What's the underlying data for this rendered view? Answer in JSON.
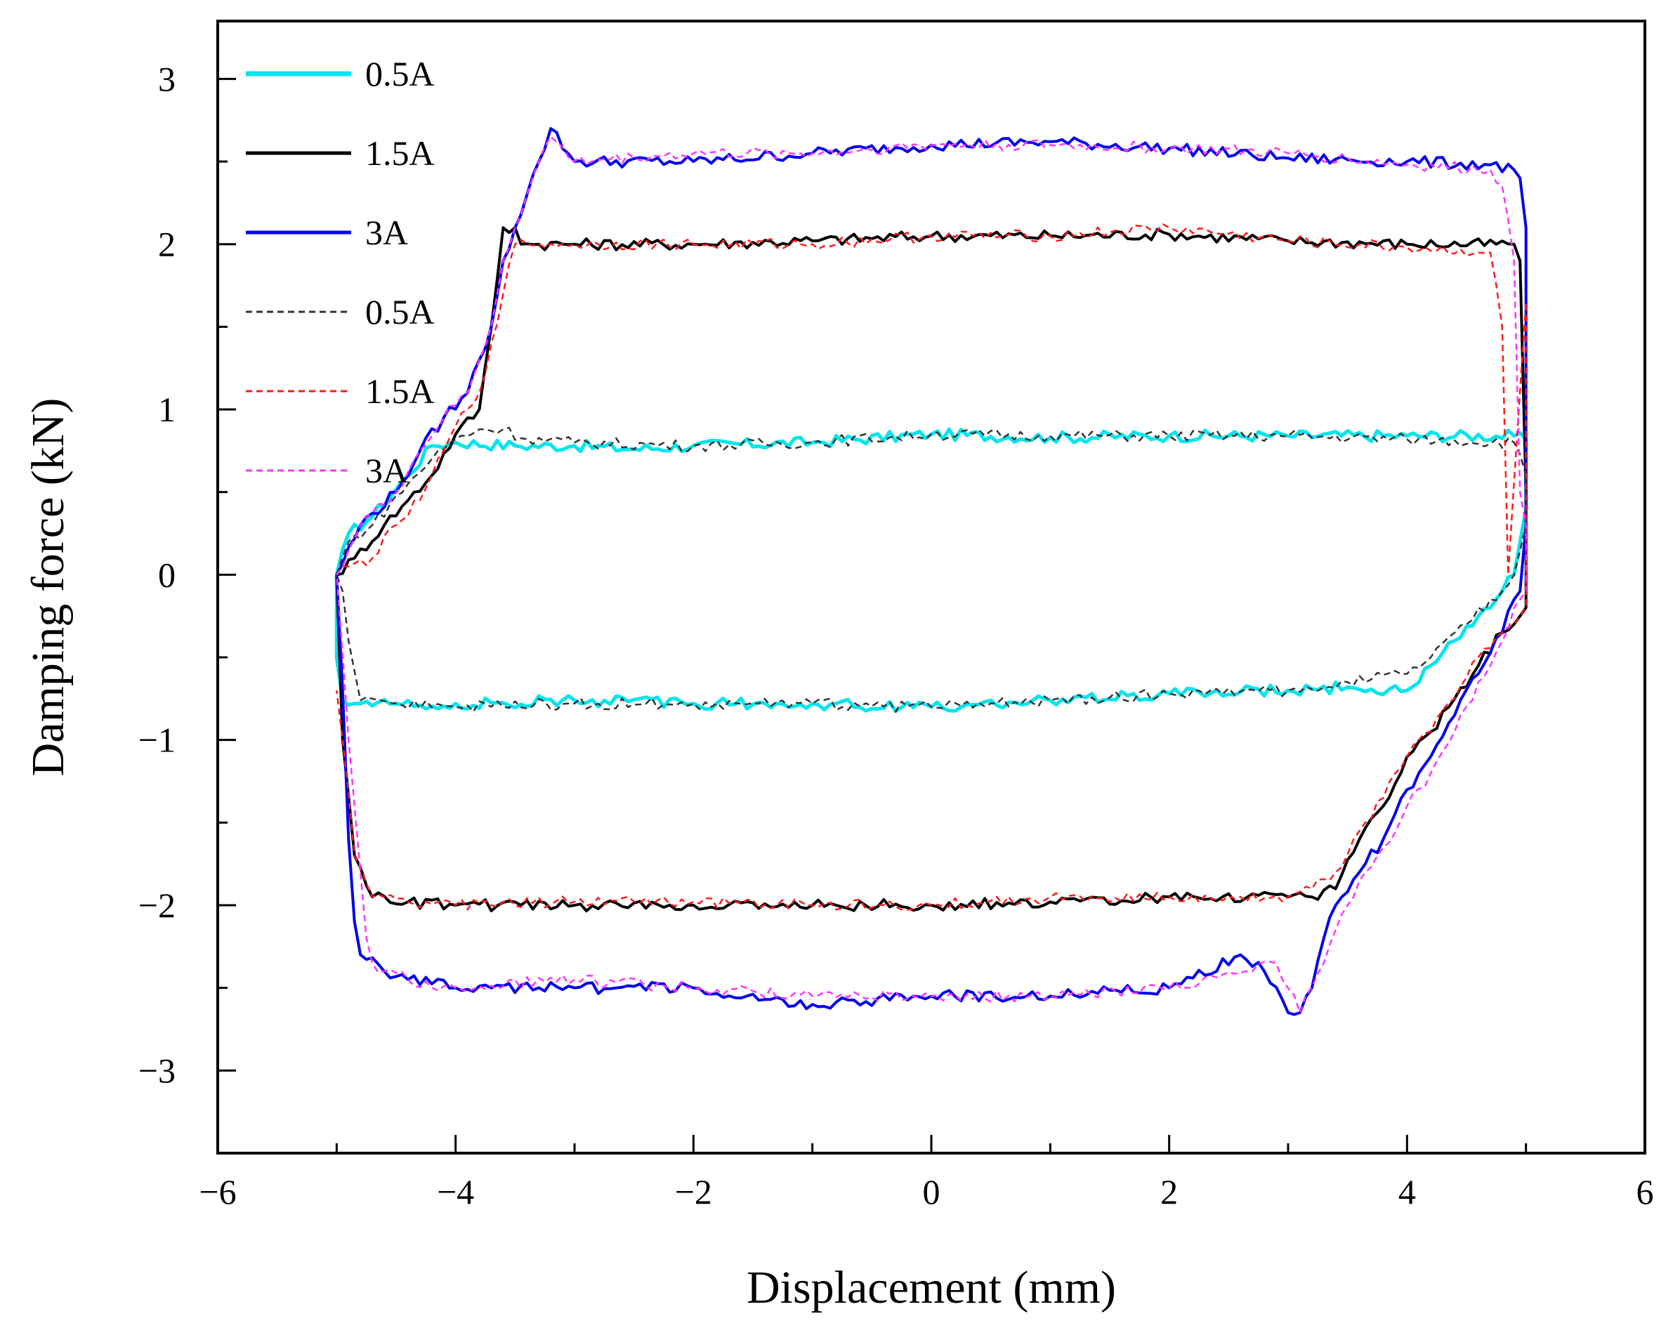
{
  "chart_data": {
    "type": "line",
    "title": "",
    "xlabel": "Displacement (mm)",
    "ylabel": "Damping force (kN)",
    "xlim": [
      -6,
      6
    ],
    "ylim": [
      -3.5,
      3.35
    ],
    "xticks": [
      -6,
      -4,
      -2,
      0,
      2,
      4,
      6
    ],
    "xtick_labels": [
      "−6",
      "−4",
      "−2",
      "0",
      "2",
      "4",
      "6"
    ],
    "yticks": [
      -3,
      -2,
      -1,
      0,
      1,
      2,
      3
    ],
    "ytick_labels": [
      "−3",
      "−2",
      "−1",
      "0",
      "1",
      "2",
      "3"
    ],
    "grid": false,
    "legend_position": "top-left",
    "series": [
      {
        "name": "0.5A",
        "style": "solid",
        "color": "#00e5ee",
        "x": [
          -5.0,
          -4.9,
          -4.7,
          -4.4,
          -4.2,
          -4.0,
          -3.5,
          -3.0,
          -2.5,
          -2.0,
          -1.0,
          0.0,
          1.0,
          2.0,
          3.0,
          4.0,
          4.9,
          5.0,
          5.0,
          4.9,
          4.8,
          4.6,
          4.4,
          4.2,
          4.0,
          3.5,
          3.0,
          2.0,
          1.0,
          0.0,
          -1.0,
          -2.0,
          -3.0,
          -4.0,
          -4.5,
          -4.8,
          -4.95,
          -5.0,
          -5.0
        ],
        "y": [
          0.0,
          0.25,
          0.35,
          0.6,
          0.78,
          0.8,
          0.78,
          0.78,
          0.76,
          0.78,
          0.8,
          0.85,
          0.83,
          0.84,
          0.84,
          0.84,
          0.84,
          0.82,
          0.4,
          0.0,
          -0.1,
          -0.25,
          -0.4,
          -0.55,
          -0.7,
          -0.68,
          -0.7,
          -0.72,
          -0.76,
          -0.8,
          -0.78,
          -0.78,
          -0.76,
          -0.78,
          -0.78,
          -0.78,
          -0.76,
          -0.5,
          0.0
        ]
      },
      {
        "name": "1.5A",
        "style": "solid",
        "color": "#000000",
        "x": [
          -5.0,
          -4.85,
          -4.6,
          -4.4,
          -4.2,
          -4.0,
          -3.8,
          -3.7,
          -3.6,
          -3.5,
          -3.45,
          -3.3,
          -3.0,
          -2.0,
          -1.0,
          0.0,
          1.0,
          2.0,
          3.0,
          4.0,
          4.9,
          4.95,
          5.0,
          5.0,
          4.95,
          4.9,
          4.8,
          4.6,
          4.4,
          4.2,
          4.0,
          3.8,
          3.6,
          3.4,
          3.2,
          3.0,
          2.0,
          1.0,
          0.0,
          -1.0,
          -2.0,
          -3.0,
          -4.0,
          -4.4,
          -4.7,
          -4.85,
          -4.95,
          -5.0
        ],
        "y": [
          0.0,
          0.1,
          0.3,
          0.45,
          0.6,
          0.85,
          1.0,
          1.5,
          2.1,
          2.1,
          2.0,
          2.0,
          2.0,
          2.0,
          2.02,
          2.05,
          2.05,
          2.06,
          2.02,
          2.0,
          2.0,
          1.9,
          0.5,
          -0.2,
          -0.25,
          -0.3,
          -0.35,
          -0.55,
          -0.75,
          -0.95,
          -1.1,
          -1.4,
          -1.6,
          -1.9,
          -1.95,
          -1.95,
          -1.95,
          -1.98,
          -2.0,
          -2.0,
          -2.0,
          -2.0,
          -2.0,
          -1.98,
          -1.95,
          -1.7,
          -1.0,
          0.0
        ]
      },
      {
        "name": "3A",
        "style": "solid",
        "color": "#0000ee",
        "x": [
          -5.0,
          -4.8,
          -4.5,
          -4.3,
          -4.1,
          -3.9,
          -3.8,
          -3.7,
          -3.6,
          -3.5,
          -3.4,
          -3.3,
          -3.2,
          -3.0,
          -2.0,
          -1.0,
          0.0,
          1.0,
          2.0,
          3.0,
          4.0,
          4.7,
          4.9,
          4.95,
          5.0,
          5.0,
          4.95,
          4.9,
          4.8,
          4.6,
          4.4,
          4.2,
          4.0,
          3.8,
          3.6,
          3.4,
          3.3,
          3.2,
          3.1,
          3.0,
          2.8,
          2.6,
          2.0,
          1.0,
          0.0,
          -1.0,
          -2.0,
          -3.0,
          -4.0,
          -4.4,
          -4.6,
          -4.8,
          -4.85,
          -4.9,
          -4.95,
          -5.0
        ],
        "y": [
          0.0,
          0.3,
          0.5,
          0.75,
          0.95,
          1.1,
          1.3,
          1.5,
          1.9,
          2.1,
          2.3,
          2.5,
          2.7,
          2.5,
          2.5,
          2.55,
          2.6,
          2.62,
          2.58,
          2.52,
          2.5,
          2.48,
          2.45,
          2.4,
          2.1,
          0.3,
          -0.1,
          -0.15,
          -0.35,
          -0.6,
          -0.85,
          -1.1,
          -1.3,
          -1.6,
          -1.8,
          -2.0,
          -2.2,
          -2.5,
          -2.65,
          -2.65,
          -2.4,
          -2.3,
          -2.5,
          -2.55,
          -2.55,
          -2.6,
          -2.5,
          -2.5,
          -2.5,
          -2.45,
          -2.4,
          -2.3,
          -2.1,
          -1.6,
          -0.7,
          0.0
        ]
      },
      {
        "name": "0.5A",
        "style": "dashed",
        "color": "#333333",
        "x": [
          -5.0,
          -4.9,
          -4.7,
          -4.4,
          -4.2,
          -4.0,
          -3.8,
          -3.6,
          -3.4,
          -3.0,
          -2.0,
          -1.0,
          0.0,
          1.0,
          2.0,
          3.0,
          4.0,
          4.9,
          5.0,
          5.0,
          4.9,
          4.8,
          4.5,
          4.2,
          4.0,
          3.5,
          3.0,
          2.0,
          1.0,
          0.0,
          -1.0,
          -2.0,
          -3.0,
          -4.0,
          -4.5,
          -4.8,
          -4.9,
          -4.95,
          -5.0
        ],
        "y": [
          0.0,
          0.2,
          0.3,
          0.55,
          0.7,
          0.82,
          0.88,
          0.88,
          0.82,
          0.8,
          0.78,
          0.8,
          0.85,
          0.84,
          0.84,
          0.84,
          0.82,
          0.8,
          0.6,
          0.3,
          0.0,
          -0.1,
          -0.3,
          -0.5,
          -0.6,
          -0.65,
          -0.7,
          -0.72,
          -0.76,
          -0.8,
          -0.78,
          -0.78,
          -0.78,
          -0.8,
          -0.78,
          -0.76,
          -0.4,
          -0.1,
          0.0
        ]
      },
      {
        "name": "1.5A",
        "style": "dashed",
        "color": "#ff1a1a",
        "x": [
          -5.0,
          -4.9,
          -4.7,
          -4.5,
          -4.3,
          -4.2,
          -4.1,
          -4.0,
          -3.9,
          -3.8,
          -3.7,
          -3.6,
          -3.5,
          -3.4,
          -3.3,
          -3.0,
          -2.0,
          -1.0,
          0.0,
          1.0,
          2.0,
          3.0,
          4.0,
          4.7,
          4.8,
          4.85,
          5.0,
          5.0,
          4.95,
          4.9,
          4.8,
          4.6,
          4.4,
          4.2,
          4.0,
          3.8,
          3.6,
          3.4,
          3.2,
          3.0,
          2.0,
          1.0,
          0.0,
          -1.0,
          -2.0,
          -3.0,
          -4.0,
          -4.4,
          -4.7,
          -4.85,
          -4.95,
          -5.0
        ],
        "y": [
          0.0,
          0.05,
          0.1,
          0.3,
          0.45,
          0.6,
          0.75,
          0.9,
          1.0,
          1.1,
          1.4,
          1.7,
          2.0,
          2.0,
          2.0,
          2.0,
          2.0,
          2.0,
          2.05,
          2.05,
          2.1,
          2.02,
          1.98,
          1.95,
          1.5,
          0.0,
          1.65,
          -0.2,
          -0.25,
          -0.3,
          -0.35,
          -0.5,
          -0.75,
          -0.95,
          -1.1,
          -1.35,
          -1.55,
          -1.8,
          -1.9,
          -1.95,
          -1.95,
          -1.95,
          -2.0,
          -2.0,
          -1.98,
          -1.98,
          -2.0,
          -1.98,
          -1.95,
          -1.7,
          -1.0,
          -0.7
        ]
      },
      {
        "name": "3A",
        "style": "dashed",
        "color": "#ff33ff",
        "x": [
          -5.0,
          -4.8,
          -4.5,
          -4.3,
          -4.1,
          -3.9,
          -3.8,
          -3.7,
          -3.6,
          -3.5,
          -3.4,
          -3.3,
          -3.2,
          -3.0,
          -2.0,
          -1.0,
          0.0,
          1.0,
          2.0,
          3.0,
          4.0,
          4.7,
          4.8,
          4.9,
          4.95,
          5.0,
          5.0,
          4.95,
          4.9,
          4.8,
          4.6,
          4.4,
          4.2,
          4.0,
          3.8,
          3.6,
          3.5,
          3.4,
          3.3,
          3.2,
          3.1,
          2.9,
          2.7,
          2.0,
          1.0,
          0.0,
          -1.0,
          -2.0,
          -3.0,
          -4.0,
          -4.4,
          -4.6,
          -4.7,
          -4.75,
          -4.8,
          -4.9,
          -5.0
        ],
        "y": [
          0.0,
          0.3,
          0.5,
          0.75,
          0.95,
          1.1,
          1.3,
          1.5,
          1.9,
          2.1,
          2.3,
          2.5,
          2.65,
          2.5,
          2.55,
          2.55,
          2.6,
          2.6,
          2.58,
          2.55,
          2.48,
          2.45,
          2.35,
          1.9,
          0.5,
          0.3,
          -0.1,
          -0.15,
          -0.2,
          -0.4,
          -0.65,
          -0.95,
          -1.2,
          -1.4,
          -1.65,
          -1.85,
          -2.0,
          -2.15,
          -2.35,
          -2.5,
          -2.65,
          -2.35,
          -2.4,
          -2.5,
          -2.55,
          -2.55,
          -2.55,
          -2.5,
          -2.45,
          -2.5,
          -2.45,
          -2.4,
          -2.35,
          -2.2,
          -1.8,
          -1.0,
          0.0
        ]
      }
    ]
  }
}
